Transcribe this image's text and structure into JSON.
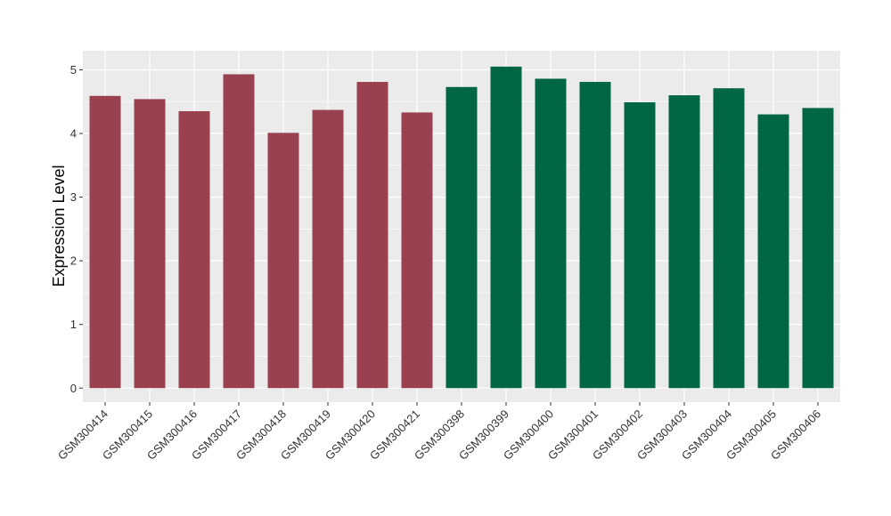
{
  "chart_data": {
    "type": "bar",
    "title": "",
    "xlabel": "",
    "ylabel": "Expression Level",
    "ylim": [
      -0.22,
      5.3
    ],
    "yticks": [
      0,
      1,
      2,
      3,
      4,
      5
    ],
    "grid": true,
    "categories": [
      "GSM300414",
      "GSM300415",
      "GSM300416",
      "GSM300417",
      "GSM300418",
      "GSM300419",
      "GSM300420",
      "GSM300421",
      "GSM300398",
      "GSM300399",
      "GSM300400",
      "GSM300401",
      "GSM300402",
      "GSM300403",
      "GSM300404",
      "GSM300405",
      "GSM300406"
    ],
    "values": [
      4.59,
      4.54,
      4.35,
      4.93,
      4.01,
      4.37,
      4.81,
      4.33,
      4.73,
      5.05,
      4.86,
      4.81,
      4.49,
      4.6,
      4.71,
      4.3,
      4.4
    ],
    "bar_colors": [
      "#9A4150",
      "#9A4150",
      "#9A4150",
      "#9A4150",
      "#9A4150",
      "#9A4150",
      "#9A4150",
      "#9A4150",
      "#006644",
      "#006644",
      "#006644",
      "#006644",
      "#006644",
      "#006644",
      "#006644",
      "#006644",
      "#006644"
    ],
    "panel_background": "#EBEBEB",
    "grid_color": "#FFFFFF"
  }
}
